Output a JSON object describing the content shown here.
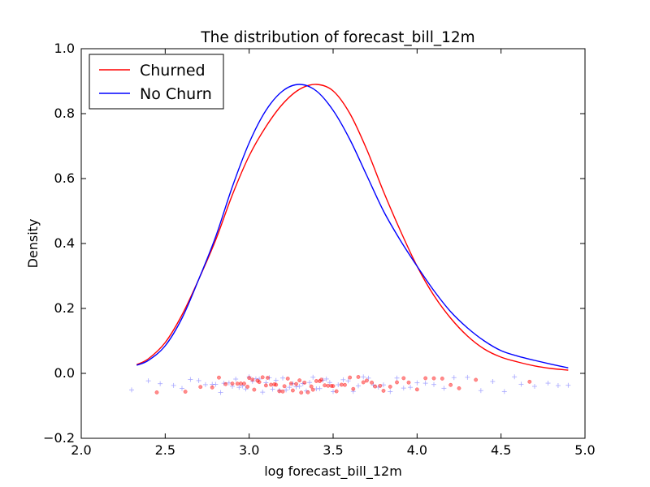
{
  "chart_data": {
    "type": "line",
    "title": "The distribution of forecast_bill_12m",
    "xlabel": "log forecast_bill_12m",
    "ylabel": "Density",
    "xlim": [
      2.0,
      5.0
    ],
    "ylim": [
      -0.2,
      1.0
    ],
    "xticks": [
      "2.0",
      "2.5",
      "3.0",
      "3.5",
      "4.0",
      "4.5",
      "5.0"
    ],
    "yticks": [
      "−0.2",
      "0.0",
      "0.2",
      "0.4",
      "0.6",
      "0.8",
      "1.0"
    ],
    "grid": false,
    "legend_placement": "upper-left",
    "series": [
      {
        "name": "Churned",
        "color": "#ff0000",
        "x": [
          2.33,
          2.4,
          2.5,
          2.6,
          2.7,
          2.8,
          2.9,
          3.0,
          3.1,
          3.2,
          3.3,
          3.4,
          3.5,
          3.6,
          3.7,
          3.8,
          3.9,
          4.0,
          4.1,
          4.2,
          4.3,
          4.4,
          4.5,
          4.6,
          4.7,
          4.8,
          4.9
        ],
        "y": [
          0.027,
          0.045,
          0.095,
          0.18,
          0.29,
          0.41,
          0.55,
          0.67,
          0.76,
          0.83,
          0.875,
          0.89,
          0.87,
          0.8,
          0.69,
          0.56,
          0.44,
          0.33,
          0.24,
          0.17,
          0.115,
          0.075,
          0.05,
          0.035,
          0.023,
          0.015,
          0.01
        ]
      },
      {
        "name": "No Churn",
        "color": "#0000ff",
        "x": [
          2.33,
          2.4,
          2.5,
          2.6,
          2.7,
          2.8,
          2.9,
          3.0,
          3.1,
          3.2,
          3.3,
          3.4,
          3.5,
          3.6,
          3.7,
          3.8,
          3.9,
          4.0,
          4.1,
          4.2,
          4.3,
          4.4,
          4.5,
          4.6,
          4.7,
          4.8,
          4.9
        ],
        "y": [
          0.025,
          0.04,
          0.085,
          0.17,
          0.29,
          0.42,
          0.575,
          0.71,
          0.81,
          0.87,
          0.89,
          0.87,
          0.81,
          0.72,
          0.61,
          0.5,
          0.41,
          0.33,
          0.255,
          0.19,
          0.14,
          0.1,
          0.07,
          0.053,
          0.04,
          0.028,
          0.017
        ]
      }
    ],
    "rug": {
      "churned_color": "#ff0000",
      "no_churn_color": "#0000ff",
      "churned_marker": "dot",
      "no_churn_marker": "plus",
      "y_range": [
        -0.06,
        -0.01
      ],
      "churned_x": [
        2.45,
        2.62,
        2.71,
        2.78,
        2.82,
        2.86,
        2.9,
        2.93,
        2.95,
        2.97,
        2.99,
        3.0,
        3.02,
        3.03,
        3.05,
        3.06,
        3.08,
        3.1,
        3.11,
        3.13,
        3.15,
        3.16,
        3.18,
        3.2,
        3.21,
        3.23,
        3.25,
        3.26,
        3.28,
        3.3,
        3.31,
        3.33,
        3.35,
        3.37,
        3.38,
        3.4,
        3.42,
        3.43,
        3.45,
        3.47,
        3.49,
        3.5,
        3.52,
        3.55,
        3.57,
        3.6,
        3.62,
        3.65,
        3.68,
        3.7,
        3.73,
        3.75,
        3.78,
        3.8,
        3.84,
        3.88,
        3.92,
        3.95,
        4.0,
        4.05,
        4.1,
        4.15,
        4.2,
        4.25,
        4.35,
        4.67
      ],
      "no_churn_x": [
        2.3,
        2.4,
        2.47,
        2.55,
        2.6,
        2.65,
        2.7,
        2.74,
        2.78,
        2.8,
        2.83,
        2.85,
        2.88,
        2.9,
        2.92,
        2.94,
        2.96,
        2.98,
        3.0,
        3.02,
        3.04,
        3.06,
        3.08,
        3.1,
        3.12,
        3.14,
        3.16,
        3.18,
        3.2,
        3.22,
        3.24,
        3.26,
        3.28,
        3.3,
        3.32,
        3.34,
        3.36,
        3.38,
        3.4,
        3.42,
        3.44,
        3.46,
        3.48,
        3.5,
        3.53,
        3.56,
        3.59,
        3.62,
        3.65,
        3.68,
        3.71,
        3.74,
        3.77,
        3.8,
        3.84,
        3.88,
        3.92,
        3.96,
        4.0,
        4.05,
        4.1,
        4.16,
        4.22,
        4.3,
        4.38,
        4.45,
        4.52,
        4.58,
        4.62,
        4.7,
        4.78,
        4.84,
        4.9
      ]
    }
  }
}
